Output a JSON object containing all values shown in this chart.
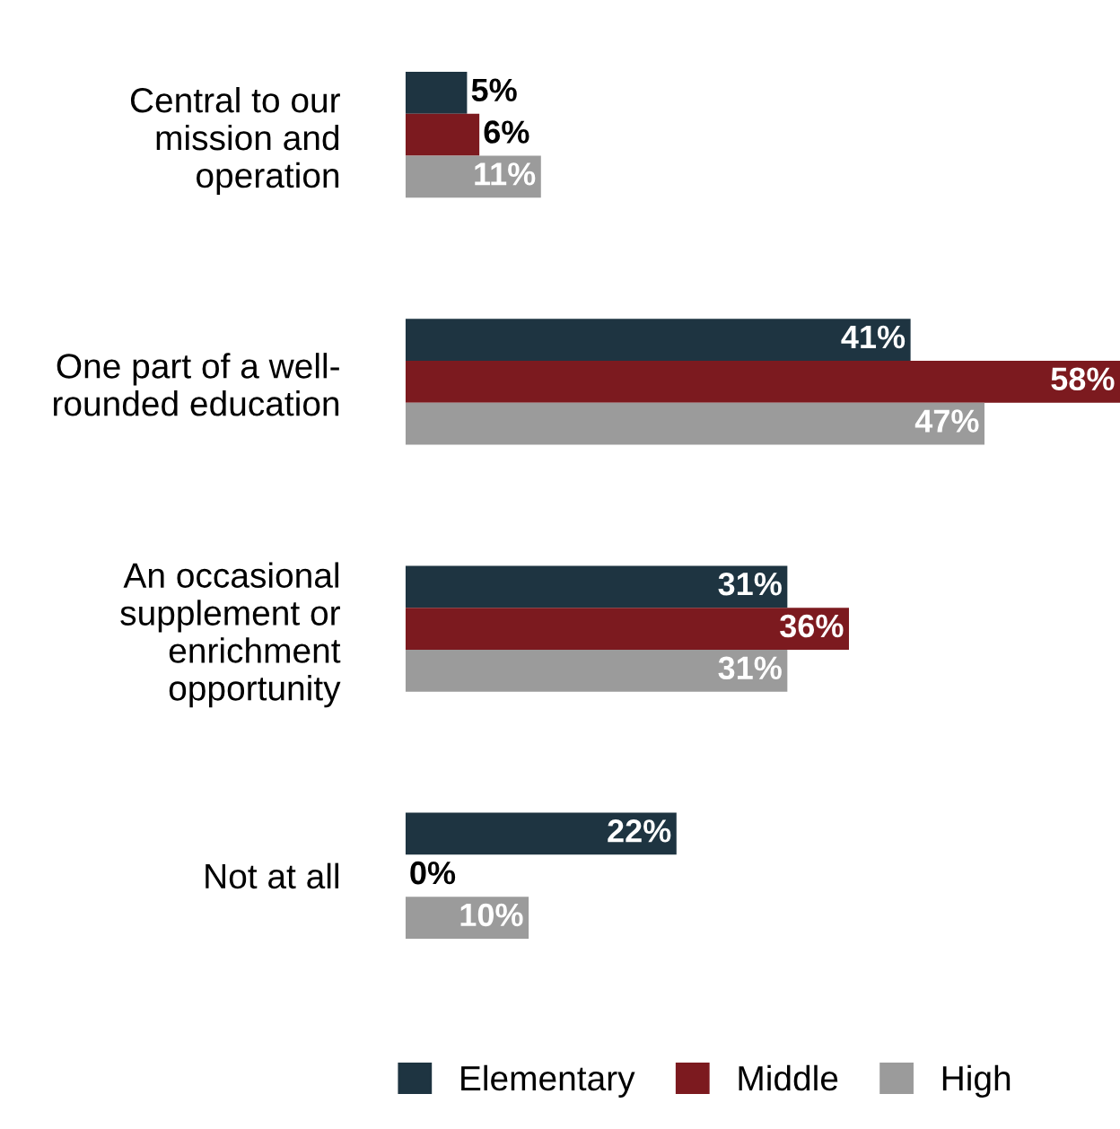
{
  "chart_data": {
    "type": "bar",
    "orientation": "horizontal",
    "categories": [
      "Central to our\nmission and\noperation",
      "One part of a well-\nrounded education",
      "An occasional\nsupplement or\nenrichment\nopportunity",
      "Not at all"
    ],
    "series": [
      {
        "name": "Elementary",
        "color": "#1e3441",
        "values": [
          5,
          41,
          31,
          22
        ],
        "value_labels": [
          "5%",
          "41%",
          "31%",
          "22%"
        ]
      },
      {
        "name": "Middle",
        "color": "#7c1a1f",
        "values": [
          6,
          58,
          36,
          0
        ],
        "value_labels": [
          "6%",
          "58%",
          "36%",
          "0%"
        ]
      },
      {
        "name": "High",
        "color": "#9b9b9b",
        "values": [
          11,
          47,
          31,
          10
        ],
        "value_labels": [
          "11%",
          "47%",
          "31%",
          "10%"
        ]
      }
    ],
    "xlim": [
      0,
      58
    ],
    "tick_labels": "y",
    "grid": false,
    "legend": "bottom"
  }
}
